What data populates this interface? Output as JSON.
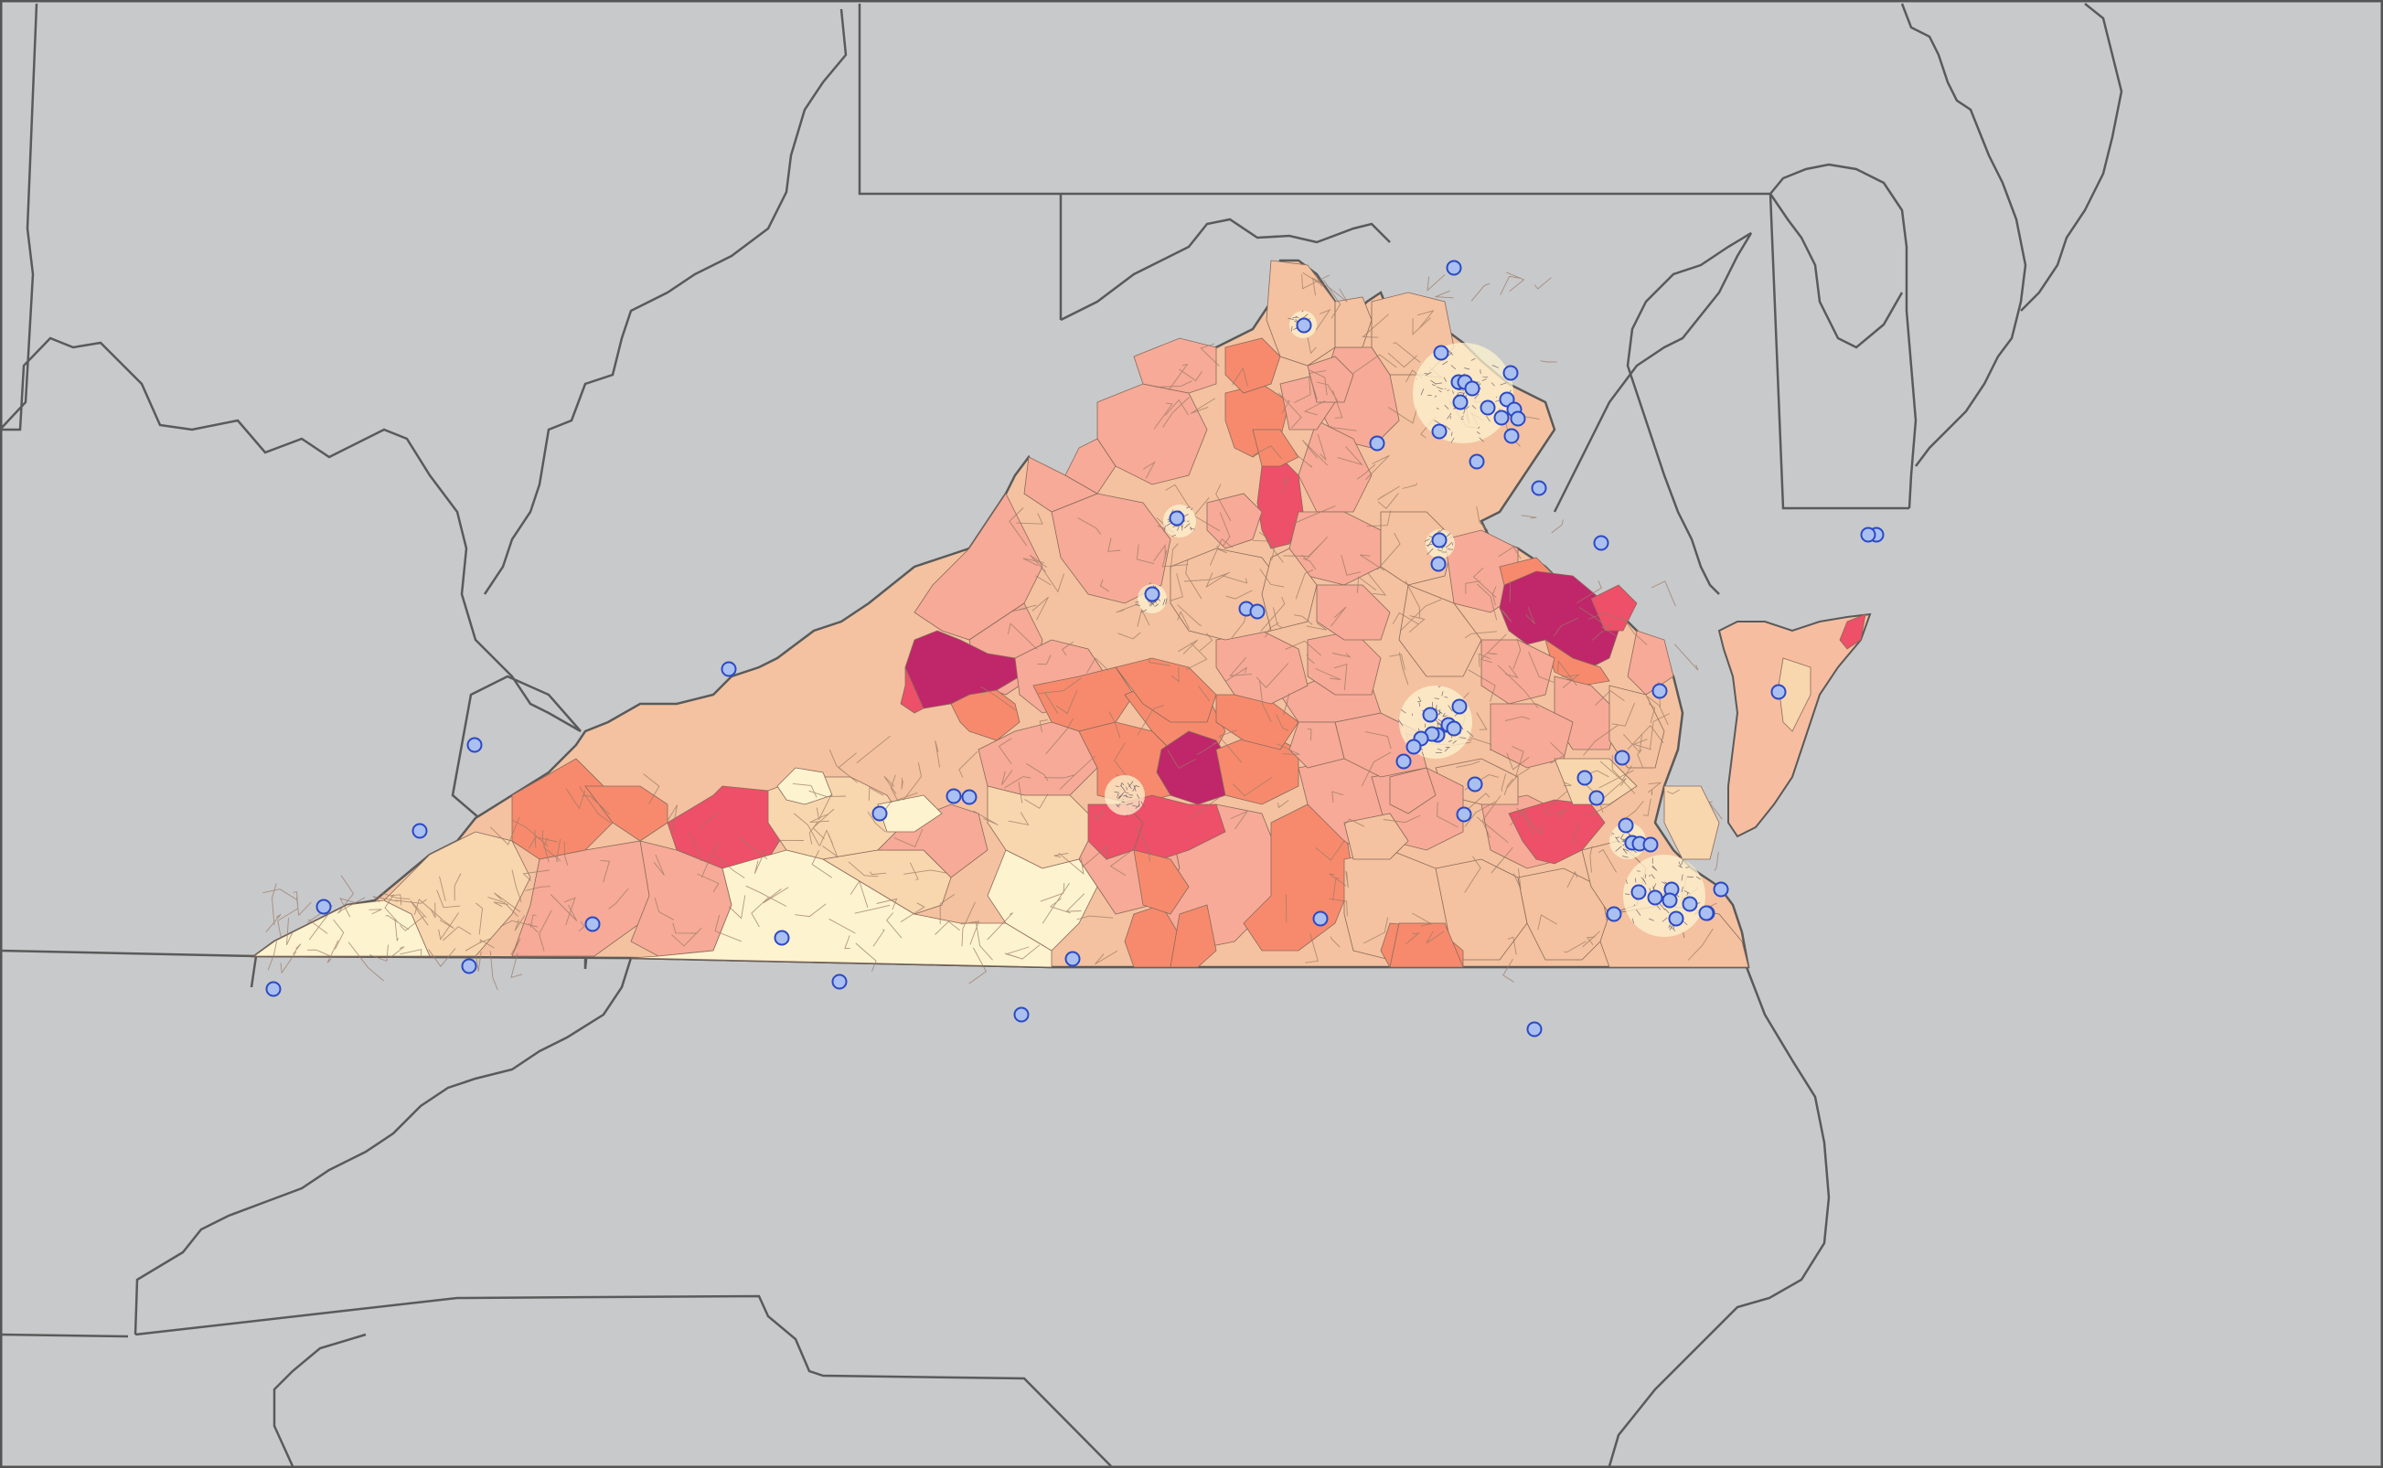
{
  "map": {
    "background_color": "#c8c9cb",
    "state_border_color": "#5a5a5a",
    "virginia_label": "",
    "region_color_scale": {
      "lowest": "#fdf3cf",
      "low": "#f8d6ae",
      "mid_low": "#f4c2a0",
      "mid": "#f6aa97",
      "mid_high": "#f78a6d",
      "high": "#ee4f69",
      "highest": "#c0266a"
    },
    "marker_style": {
      "fill": "#a9c0f0",
      "stroke": "#2b49c6",
      "meaning": "point location"
    },
    "marker_count_inside_state": 67,
    "marker_count_outside_state": 14
  }
}
